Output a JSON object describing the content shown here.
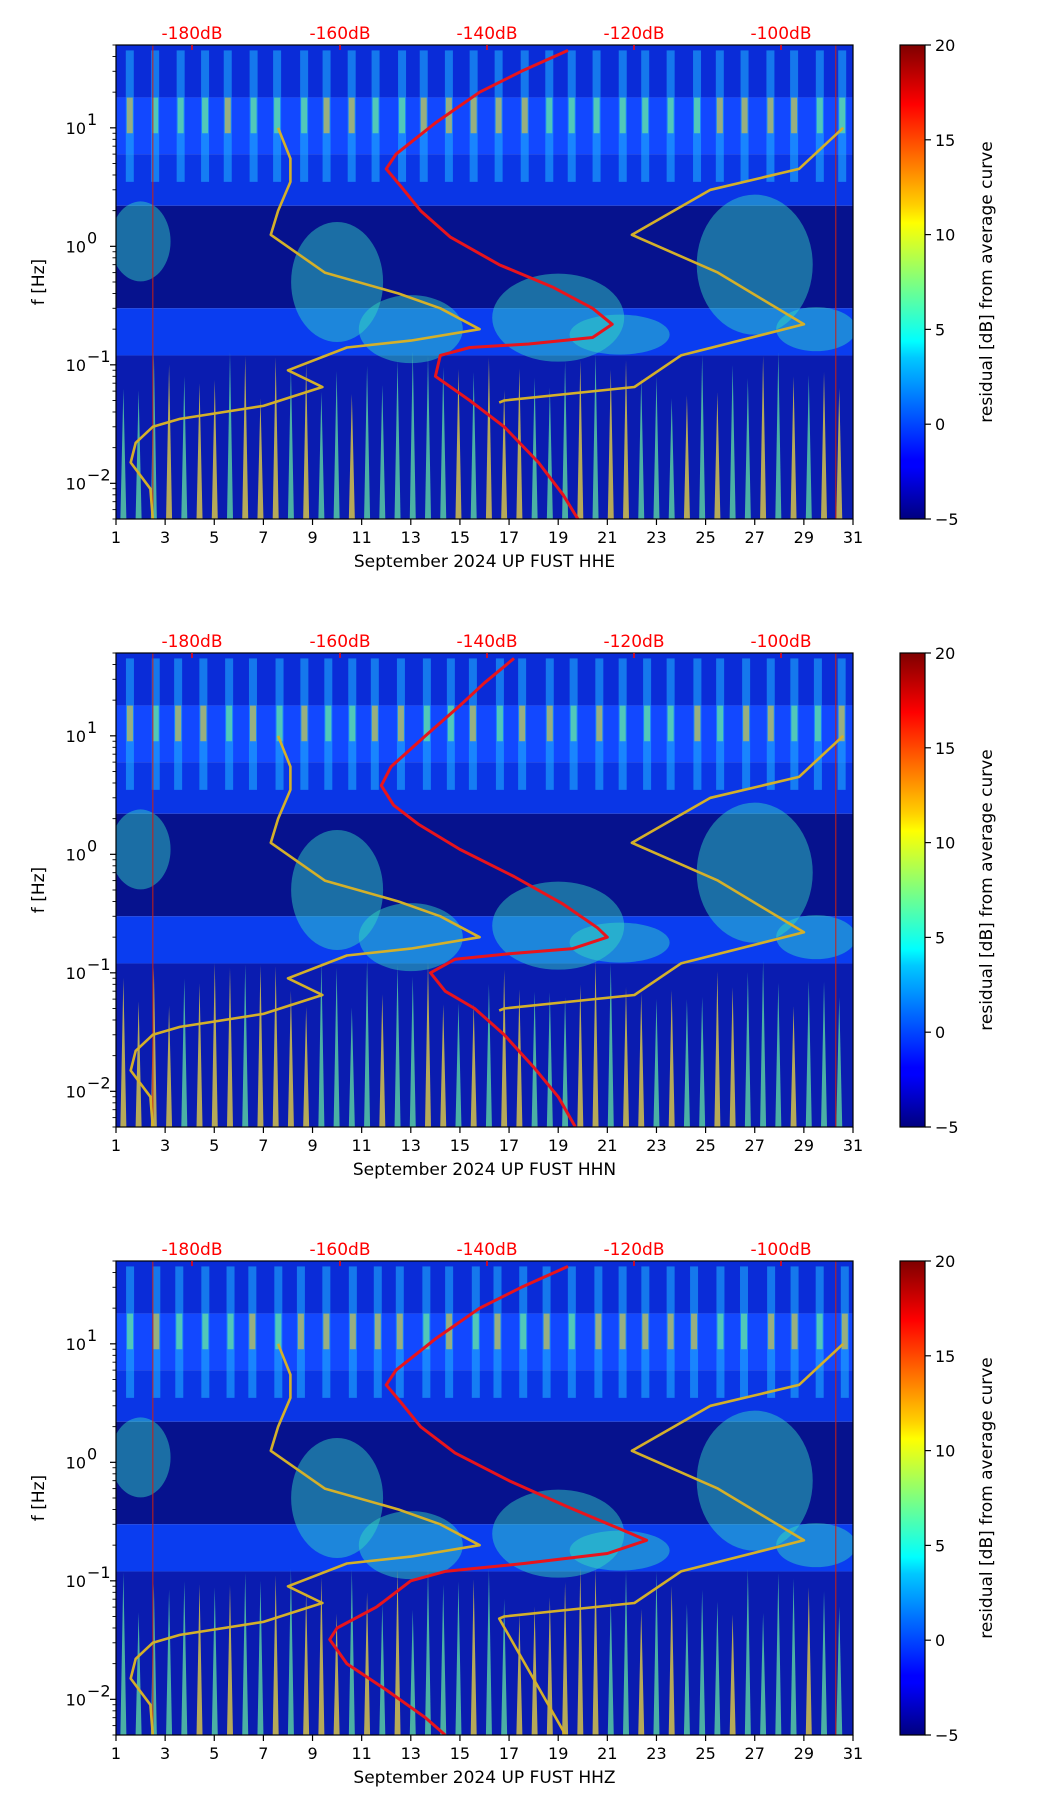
{
  "chart_data": [
    {
      "type": "heatmap",
      "xlabel": "September 2024 UP FUST  HHE",
      "ylabel": "f [Hz]",
      "colorbar_label": "residual [dB] from average curve",
      "xlim": [
        1,
        31
      ],
      "xticks": [
        "1",
        "3",
        "5",
        "7",
        "9",
        "11",
        "13",
        "15",
        "17",
        "19",
        "21",
        "23",
        "25",
        "27",
        "29",
        "31"
      ],
      "ylim": [
        0.005,
        50
      ],
      "y_scale": "log",
      "yticks": [
        {
          "value": 10,
          "base": "10",
          "exp": "1"
        },
        {
          "value": 1,
          "base": "10",
          "exp": "0"
        },
        {
          "value": 0.1,
          "base": "10",
          "exp": "−1"
        },
        {
          "value": 0.01,
          "base": "10",
          "exp": "−2"
        }
      ],
      "colorbar_range": [
        -5,
        20
      ],
      "colorbar_ticks": [
        "20",
        "15",
        "10",
        "5",
        "0",
        "−5"
      ],
      "top_axis_ticks": [
        "-180dB",
        "-160dB",
        "-140dB",
        "-120dB",
        "-100dB"
      ],
      "series": [
        {
          "color": "#e8141c",
          "points": [
            [
              19.4,
              45
            ],
            [
              17.5,
              30
            ],
            [
              15.8,
              20
            ],
            [
              14,
              11
            ],
            [
              12.4,
              6
            ],
            [
              12,
              4.5
            ],
            [
              12.6,
              3.2
            ],
            [
              13.4,
              2
            ],
            [
              14.6,
              1.2
            ],
            [
              16.6,
              0.7
            ],
            [
              18.8,
              0.45
            ],
            [
              20.4,
              0.3
            ],
            [
              21.2,
              0.22
            ],
            [
              20.4,
              0.17
            ],
            [
              17.8,
              0.15
            ],
            [
              15.4,
              0.14
            ],
            [
              14.2,
              0.12
            ],
            [
              14,
              0.08
            ],
            [
              15.4,
              0.05
            ],
            [
              16.8,
              0.03
            ],
            [
              18.2,
              0.015
            ],
            [
              19.2,
              0.008
            ],
            [
              19.8,
              0.005
            ]
          ]
        },
        {
          "color": "#d4b02a",
          "points": [
            [
              7.6,
              10
            ],
            [
              8.1,
              5.5
            ],
            [
              8.1,
              3.5
            ],
            [
              7.6,
              2
            ],
            [
              7.3,
              1.25
            ],
            [
              9.5,
              0.6
            ],
            [
              12.5,
              0.4
            ],
            [
              14.2,
              0.3
            ],
            [
              15.8,
              0.2
            ],
            [
              13,
              0.16
            ],
            [
              10.4,
              0.14
            ],
            [
              8,
              0.09
            ],
            [
              9.4,
              0.065
            ],
            [
              7,
              0.045
            ],
            [
              3.6,
              0.035
            ],
            [
              2.5,
              0.03
            ],
            [
              1.8,
              0.022
            ],
            [
              1.6,
              0.015
            ],
            [
              2.4,
              0.009
            ],
            [
              2.5,
              0.005
            ]
          ]
        },
        {
          "color": "#d4b02a",
          "points": [
            [
              30.6,
              10
            ],
            [
              28.8,
              4.5
            ],
            [
              25.2,
              3
            ],
            [
              22,
              1.25
            ],
            [
              25.5,
              0.6
            ],
            [
              29,
              0.22
            ],
            [
              24,
              0.12
            ],
            [
              22.1,
              0.065
            ],
            [
              16.8,
              0.05
            ],
            [
              16.6,
              0.048
            ]
          ]
        }
      ]
    },
    {
      "type": "heatmap",
      "xlabel": "September 2024 UP FUST  HHN",
      "ylabel": "f [Hz]",
      "colorbar_label": "residual [dB] from average curve",
      "xlim": [
        1,
        31
      ],
      "xticks": [
        "1",
        "3",
        "5",
        "7",
        "9",
        "11",
        "13",
        "15",
        "17",
        "19",
        "21",
        "23",
        "25",
        "27",
        "29",
        "31"
      ],
      "ylim": [
        0.005,
        50
      ],
      "y_scale": "log",
      "yticks": [
        {
          "value": 10,
          "base": "10",
          "exp": "1"
        },
        {
          "value": 1,
          "base": "10",
          "exp": "0"
        },
        {
          "value": 0.1,
          "base": "10",
          "exp": "−1"
        },
        {
          "value": 0.01,
          "base": "10",
          "exp": "−2"
        }
      ],
      "colorbar_range": [
        -5,
        20
      ],
      "colorbar_ticks": [
        "20",
        "15",
        "10",
        "5",
        "0",
        "−5"
      ],
      "top_axis_ticks": [
        "-180dB",
        "-160dB",
        "-140dB",
        "-120dB",
        "-100dB"
      ],
      "series": [
        {
          "color": "#e8141c",
          "points": [
            [
              17.2,
              45
            ],
            [
              16,
              28
            ],
            [
              15,
              18
            ],
            [
              13.6,
              10
            ],
            [
              12.2,
              5.5
            ],
            [
              11.8,
              3.8
            ],
            [
              12.3,
              2.6
            ],
            [
              13.3,
              1.8
            ],
            [
              15,
              1.1
            ],
            [
              17.2,
              0.65
            ],
            [
              19.2,
              0.38
            ],
            [
              20.6,
              0.24
            ],
            [
              21,
              0.2
            ],
            [
              19.6,
              0.16
            ],
            [
              17,
              0.145
            ],
            [
              14.8,
              0.13
            ],
            [
              13.8,
              0.1
            ],
            [
              14.4,
              0.07
            ],
            [
              15.6,
              0.05
            ],
            [
              16.8,
              0.03
            ],
            [
              18,
              0.016
            ],
            [
              19,
              0.009
            ],
            [
              19.7,
              0.005
            ]
          ]
        },
        {
          "color": "#d4b02a",
          "points": [
            [
              7.6,
              10
            ],
            [
              8.1,
              5.5
            ],
            [
              8.1,
              3.5
            ],
            [
              7.6,
              2
            ],
            [
              7.3,
              1.25
            ],
            [
              9.5,
              0.6
            ],
            [
              12.5,
              0.4
            ],
            [
              14.2,
              0.3
            ],
            [
              15.8,
              0.2
            ],
            [
              13,
              0.16
            ],
            [
              10.4,
              0.14
            ],
            [
              8,
              0.09
            ],
            [
              9.4,
              0.065
            ],
            [
              7,
              0.045
            ],
            [
              3.6,
              0.035
            ],
            [
              2.5,
              0.03
            ],
            [
              1.8,
              0.022
            ],
            [
              1.6,
              0.015
            ],
            [
              2.4,
              0.009
            ],
            [
              2.5,
              0.005
            ]
          ]
        },
        {
          "color": "#d4b02a",
          "points": [
            [
              30.6,
              10
            ],
            [
              28.8,
              4.5
            ],
            [
              25.2,
              3
            ],
            [
              22,
              1.25
            ],
            [
              25.5,
              0.6
            ],
            [
              29,
              0.22
            ],
            [
              24,
              0.12
            ],
            [
              22.1,
              0.065
            ],
            [
              16.8,
              0.05
            ],
            [
              16.6,
              0.048
            ]
          ]
        }
      ]
    },
    {
      "type": "heatmap",
      "xlabel": "September 2024 UP FUST  HHZ",
      "ylabel": "f [Hz]",
      "colorbar_label": "residual [dB] from average curve",
      "xlim": [
        1,
        31
      ],
      "xticks": [
        "1",
        "3",
        "5",
        "7",
        "9",
        "11",
        "13",
        "15",
        "17",
        "19",
        "21",
        "23",
        "25",
        "27",
        "29",
        "31"
      ],
      "ylim": [
        0.005,
        50
      ],
      "y_scale": "log",
      "yticks": [
        {
          "value": 10,
          "base": "10",
          "exp": "1"
        },
        {
          "value": 1,
          "base": "10",
          "exp": "0"
        },
        {
          "value": 0.1,
          "base": "10",
          "exp": "−1"
        },
        {
          "value": 0.01,
          "base": "10",
          "exp": "−2"
        }
      ],
      "colorbar_range": [
        -5,
        20
      ],
      "colorbar_ticks": [
        "20",
        "15",
        "10",
        "5",
        "0",
        "−5"
      ],
      "top_axis_ticks": [
        "-180dB",
        "-160dB",
        "-140dB",
        "-120dB",
        "-100dB"
      ],
      "series": [
        {
          "color": "#e8141c",
          "points": [
            [
              19.4,
              45
            ],
            [
              17.5,
              30
            ],
            [
              15.8,
              20
            ],
            [
              14,
              11
            ],
            [
              12.4,
              6
            ],
            [
              12,
              4.5
            ],
            [
              12.6,
              3.2
            ],
            [
              13.4,
              2
            ],
            [
              14.8,
              1.2
            ],
            [
              17,
              0.7
            ],
            [
              19.4,
              0.42
            ],
            [
              21.4,
              0.28
            ],
            [
              22.6,
              0.22
            ],
            [
              21,
              0.17
            ],
            [
              17.6,
              0.14
            ],
            [
              14.4,
              0.12
            ],
            [
              13,
              0.1
            ],
            [
              11.6,
              0.06
            ],
            [
              10,
              0.04
            ],
            [
              9.7,
              0.032
            ],
            [
              10.4,
              0.02
            ],
            [
              12,
              0.012
            ],
            [
              13.6,
              0.007
            ],
            [
              14.4,
              0.005
            ]
          ]
        },
        {
          "color": "#d4b02a",
          "points": [
            [
              7.6,
              10
            ],
            [
              8.1,
              5.5
            ],
            [
              8.1,
              3.5
            ],
            [
              7.6,
              2
            ],
            [
              7.3,
              1.25
            ],
            [
              9.5,
              0.6
            ],
            [
              12.5,
              0.4
            ],
            [
              14.2,
              0.3
            ],
            [
              15.8,
              0.2
            ],
            [
              13,
              0.16
            ],
            [
              10.4,
              0.14
            ],
            [
              8,
              0.09
            ],
            [
              9.4,
              0.065
            ],
            [
              7,
              0.045
            ],
            [
              3.6,
              0.035
            ],
            [
              2.5,
              0.03
            ],
            [
              1.8,
              0.022
            ],
            [
              1.6,
              0.015
            ],
            [
              2.4,
              0.009
            ],
            [
              2.5,
              0.005
            ]
          ]
        },
        {
          "color": "#d4b02a",
          "points": [
            [
              30.6,
              10
            ],
            [
              28.8,
              4.5
            ],
            [
              25.2,
              3
            ],
            [
              22,
              1.25
            ],
            [
              25.5,
              0.6
            ],
            [
              29,
              0.22
            ],
            [
              24,
              0.12
            ],
            [
              22.1,
              0.065
            ],
            [
              16.8,
              0.05
            ],
            [
              16.6,
              0.048
            ],
            [
              19.3,
              0.005
            ]
          ]
        }
      ]
    }
  ]
}
